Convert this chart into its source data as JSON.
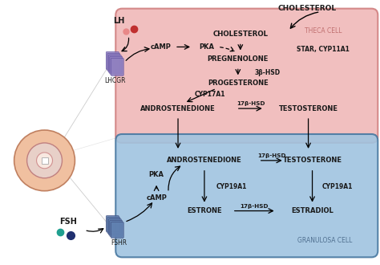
{
  "bg_color": "#ffffff",
  "theca_fill": "#f0b8b8",
  "theca_edge": "#d08080",
  "granulosa_fill": "#a0c4e0",
  "granulosa_edge": "#4878a0",
  "theca_label": "THECA CELL",
  "granulosa_label": "GRANULOSA CELL",
  "lh_label": "LH",
  "fsh_label": "FSH",
  "lhcgr_label": "LHCGR",
  "fshr_label": "FSHR",
  "cholesterol_ext": "CHOLESTEROL",
  "lh_dot1_color": "#e88888",
  "lh_dot2_color": "#c03030",
  "fsh_dot1_color": "#20a090",
  "fsh_dot2_color": "#203070",
  "receptor_lh_face": "#9080c0",
  "receptor_lh_edge": "#6050a0",
  "receptor_fsh_face": "#6080b0",
  "receptor_fsh_edge": "#405080",
  "ovary_outer": "#f0c0a0",
  "ovary_outer_edge": "#c08060",
  "ovary_mid": "#e8d0c8",
  "ovary_mid_edge": "#c08080",
  "ovary_inner": "#f8e8e0",
  "ovary_inner_edge": "#d09090",
  "theca_cell_label_color": "#c07070",
  "gran_cell_label_color": "#507090"
}
